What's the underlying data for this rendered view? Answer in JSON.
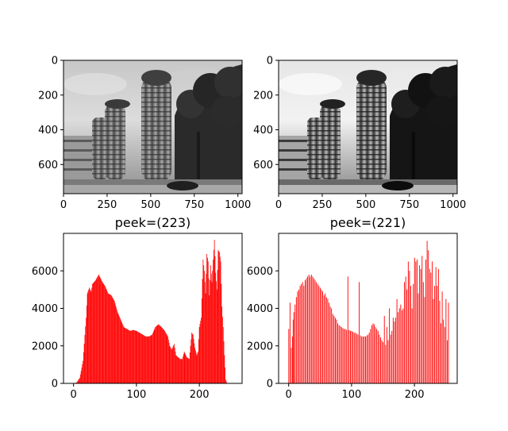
{
  "figure": {
    "background": "#ffffff",
    "histogram_color": "#ff0000"
  },
  "chart_data": [
    {
      "type": "image",
      "image": "grayscale photo of tiered cylindrical buildings with tree",
      "x_ticks": [
        "0",
        "250",
        "500",
        "750",
        "1000"
      ],
      "y_ticks": [
        "0",
        "200",
        "400",
        "600"
      ],
      "xlim": [
        0,
        1024
      ],
      "ylim": [
        768,
        0
      ]
    },
    {
      "type": "image",
      "image": "equalized grayscale photo of tiered cylindrical buildings with tree",
      "x_ticks": [
        "0",
        "250",
        "500",
        "750",
        "1000"
      ],
      "y_ticks": [
        "0",
        "200",
        "400",
        "600"
      ],
      "xlim": [
        0,
        1024
      ],
      "ylim": [
        768,
        0
      ]
    },
    {
      "type": "bar",
      "title": "peek=(223)",
      "xlim": [
        -16,
        268
      ],
      "ylim": [
        0,
        8000
      ],
      "x_ticks": [
        "0",
        "100",
        "200"
      ],
      "y_ticks": [
        "0",
        "2000",
        "4000",
        "6000"
      ],
      "color": "#ff0000",
      "envelope_x": [
        0,
        5,
        10,
        15,
        20,
        22,
        25,
        28,
        30,
        35,
        40,
        43,
        46,
        50,
        55,
        60,
        65,
        70,
        75,
        80,
        85,
        90,
        95,
        100,
        105,
        110,
        115,
        120,
        125,
        130,
        135,
        140,
        145,
        150,
        153,
        156,
        160,
        163,
        166,
        170,
        173,
        176,
        180,
        184,
        188,
        190,
        193,
        196,
        198,
        200,
        203,
        206,
        208,
        210,
        212,
        214,
        216,
        218,
        220,
        222,
        224,
        226,
        228,
        230,
        232,
        234,
        236,
        238,
        240,
        242,
        244,
        246,
        248,
        250,
        252,
        255
      ],
      "envelope_y": [
        0,
        50,
        300,
        1200,
        3500,
        4800,
        5100,
        4900,
        5300,
        5500,
        5800,
        5600,
        5400,
        5200,
        4800,
        4700,
        4400,
        3800,
        3400,
        3000,
        2900,
        2800,
        2850,
        2800,
        2700,
        2600,
        2500,
        2500,
        2600,
        3000,
        3150,
        3000,
        2800,
        2500,
        2000,
        1800,
        2100,
        1500,
        1400,
        1300,
        1300,
        1700,
        1400,
        1300,
        2700,
        2600,
        1900,
        1500,
        1700,
        3000,
        3500,
        6600,
        6000,
        4800,
        6900,
        6500,
        4700,
        6300,
        5400,
        6600,
        7650,
        5900,
        5000,
        7100,
        7000,
        6500,
        4100,
        3000,
        1500,
        200,
        0,
        0,
        0,
        0,
        0,
        0
      ]
    },
    {
      "type": "bar",
      "title": "peek=(221)",
      "xlim": [
        -16,
        268
      ],
      "ylim": [
        0,
        8000
      ],
      "x_ticks": [
        "0",
        "100",
        "200"
      ],
      "y_ticks": [
        "0",
        "2000",
        "4000",
        "6000"
      ],
      "color": "#ff0000",
      "bars": [
        [
          0,
          2900
        ],
        [
          2,
          4300
        ],
        [
          4,
          1900
        ],
        [
          6,
          2500
        ],
        [
          7,
          3400
        ],
        [
          8,
          3800
        ],
        [
          10,
          4200
        ],
        [
          12,
          4600
        ],
        [
          14,
          4900
        ],
        [
          16,
          5000
        ],
        [
          18,
          5200
        ],
        [
          20,
          5300
        ],
        [
          22,
          5400
        ],
        [
          24,
          5200
        ],
        [
          26,
          5500
        ],
        [
          28,
          5600
        ],
        [
          30,
          5700
        ],
        [
          32,
          5800
        ],
        [
          34,
          5700
        ],
        [
          36,
          5800
        ],
        [
          38,
          5700
        ],
        [
          40,
          5600
        ],
        [
          42,
          5500
        ],
        [
          44,
          5400
        ],
        [
          46,
          5300
        ],
        [
          48,
          5200
        ],
        [
          50,
          5100
        ],
        [
          52,
          5000
        ],
        [
          54,
          4900
        ],
        [
          56,
          4700
        ],
        [
          58,
          4800
        ],
        [
          60,
          4600
        ],
        [
          62,
          4500
        ],
        [
          64,
          4300
        ],
        [
          66,
          4100
        ],
        [
          68,
          4000
        ],
        [
          70,
          3700
        ],
        [
          72,
          3600
        ],
        [
          74,
          3500
        ],
        [
          76,
          3400
        ],
        [
          78,
          3200
        ],
        [
          80,
          3100
        ],
        [
          82,
          3050
        ],
        [
          84,
          3000
        ],
        [
          86,
          2950
        ],
        [
          88,
          2900
        ],
        [
          90,
          2900
        ],
        [
          92,
          2850
        ],
        [
          94,
          5700
        ],
        [
          96,
          2850
        ],
        [
          98,
          2800
        ],
        [
          100,
          2800
        ],
        [
          102,
          2750
        ],
        [
          104,
          2700
        ],
        [
          106,
          2700
        ],
        [
          108,
          2650
        ],
        [
          110,
          2600
        ],
        [
          112,
          5400
        ],
        [
          114,
          2550
        ],
        [
          116,
          2500
        ],
        [
          118,
          2500
        ],
        [
          120,
          2500
        ],
        [
          122,
          2500
        ],
        [
          124,
          2550
        ],
        [
          126,
          2600
        ],
        [
          128,
          2700
        ],
        [
          130,
          2900
        ],
        [
          132,
          3100
        ],
        [
          134,
          3200
        ],
        [
          136,
          3150
        ],
        [
          138,
          3000
        ],
        [
          140,
          2900
        ],
        [
          142,
          2800
        ],
        [
          144,
          2600
        ],
        [
          146,
          2450
        ],
        [
          148,
          2300
        ],
        [
          150,
          2200
        ],
        [
          152,
          3600
        ],
        [
          154,
          2050
        ],
        [
          156,
          3000
        ],
        [
          158,
          2300
        ],
        [
          160,
          4000
        ],
        [
          162,
          2600
        ],
        [
          164,
          2800
        ],
        [
          166,
          3500
        ],
        [
          168,
          3300
        ],
        [
          170,
          3500
        ],
        [
          172,
          4500
        ],
        [
          174,
          3800
        ],
        [
          176,
          4000
        ],
        [
          178,
          4200
        ],
        [
          180,
          3900
        ],
        [
          182,
          4000
        ],
        [
          184,
          5400
        ],
        [
          186,
          5700
        ],
        [
          188,
          5000
        ],
        [
          190,
          6500
        ],
        [
          192,
          6000
        ],
        [
          194,
          5200
        ],
        [
          196,
          4000
        ],
        [
          198,
          5300
        ],
        [
          200,
          6700
        ],
        [
          202,
          6500
        ],
        [
          204,
          6600
        ],
        [
          206,
          4800
        ],
        [
          208,
          6300
        ],
        [
          210,
          6100
        ],
        [
          212,
          6800
        ],
        [
          214,
          5400
        ],
        [
          216,
          4600
        ],
        [
          218,
          6600
        ],
        [
          220,
          7600
        ],
        [
          222,
          7100
        ],
        [
          224,
          6100
        ],
        [
          226,
          5900
        ],
        [
          228,
          6500
        ],
        [
          230,
          4500
        ],
        [
          232,
          5200
        ],
        [
          234,
          6200
        ],
        [
          236,
          5200
        ],
        [
          238,
          6100
        ],
        [
          240,
          4400
        ],
        [
          242,
          3200
        ],
        [
          244,
          4900
        ],
        [
          246,
          3400
        ],
        [
          248,
          3000
        ],
        [
          250,
          4500
        ],
        [
          252,
          2300
        ],
        [
          254,
          4300
        ]
      ]
    }
  ]
}
